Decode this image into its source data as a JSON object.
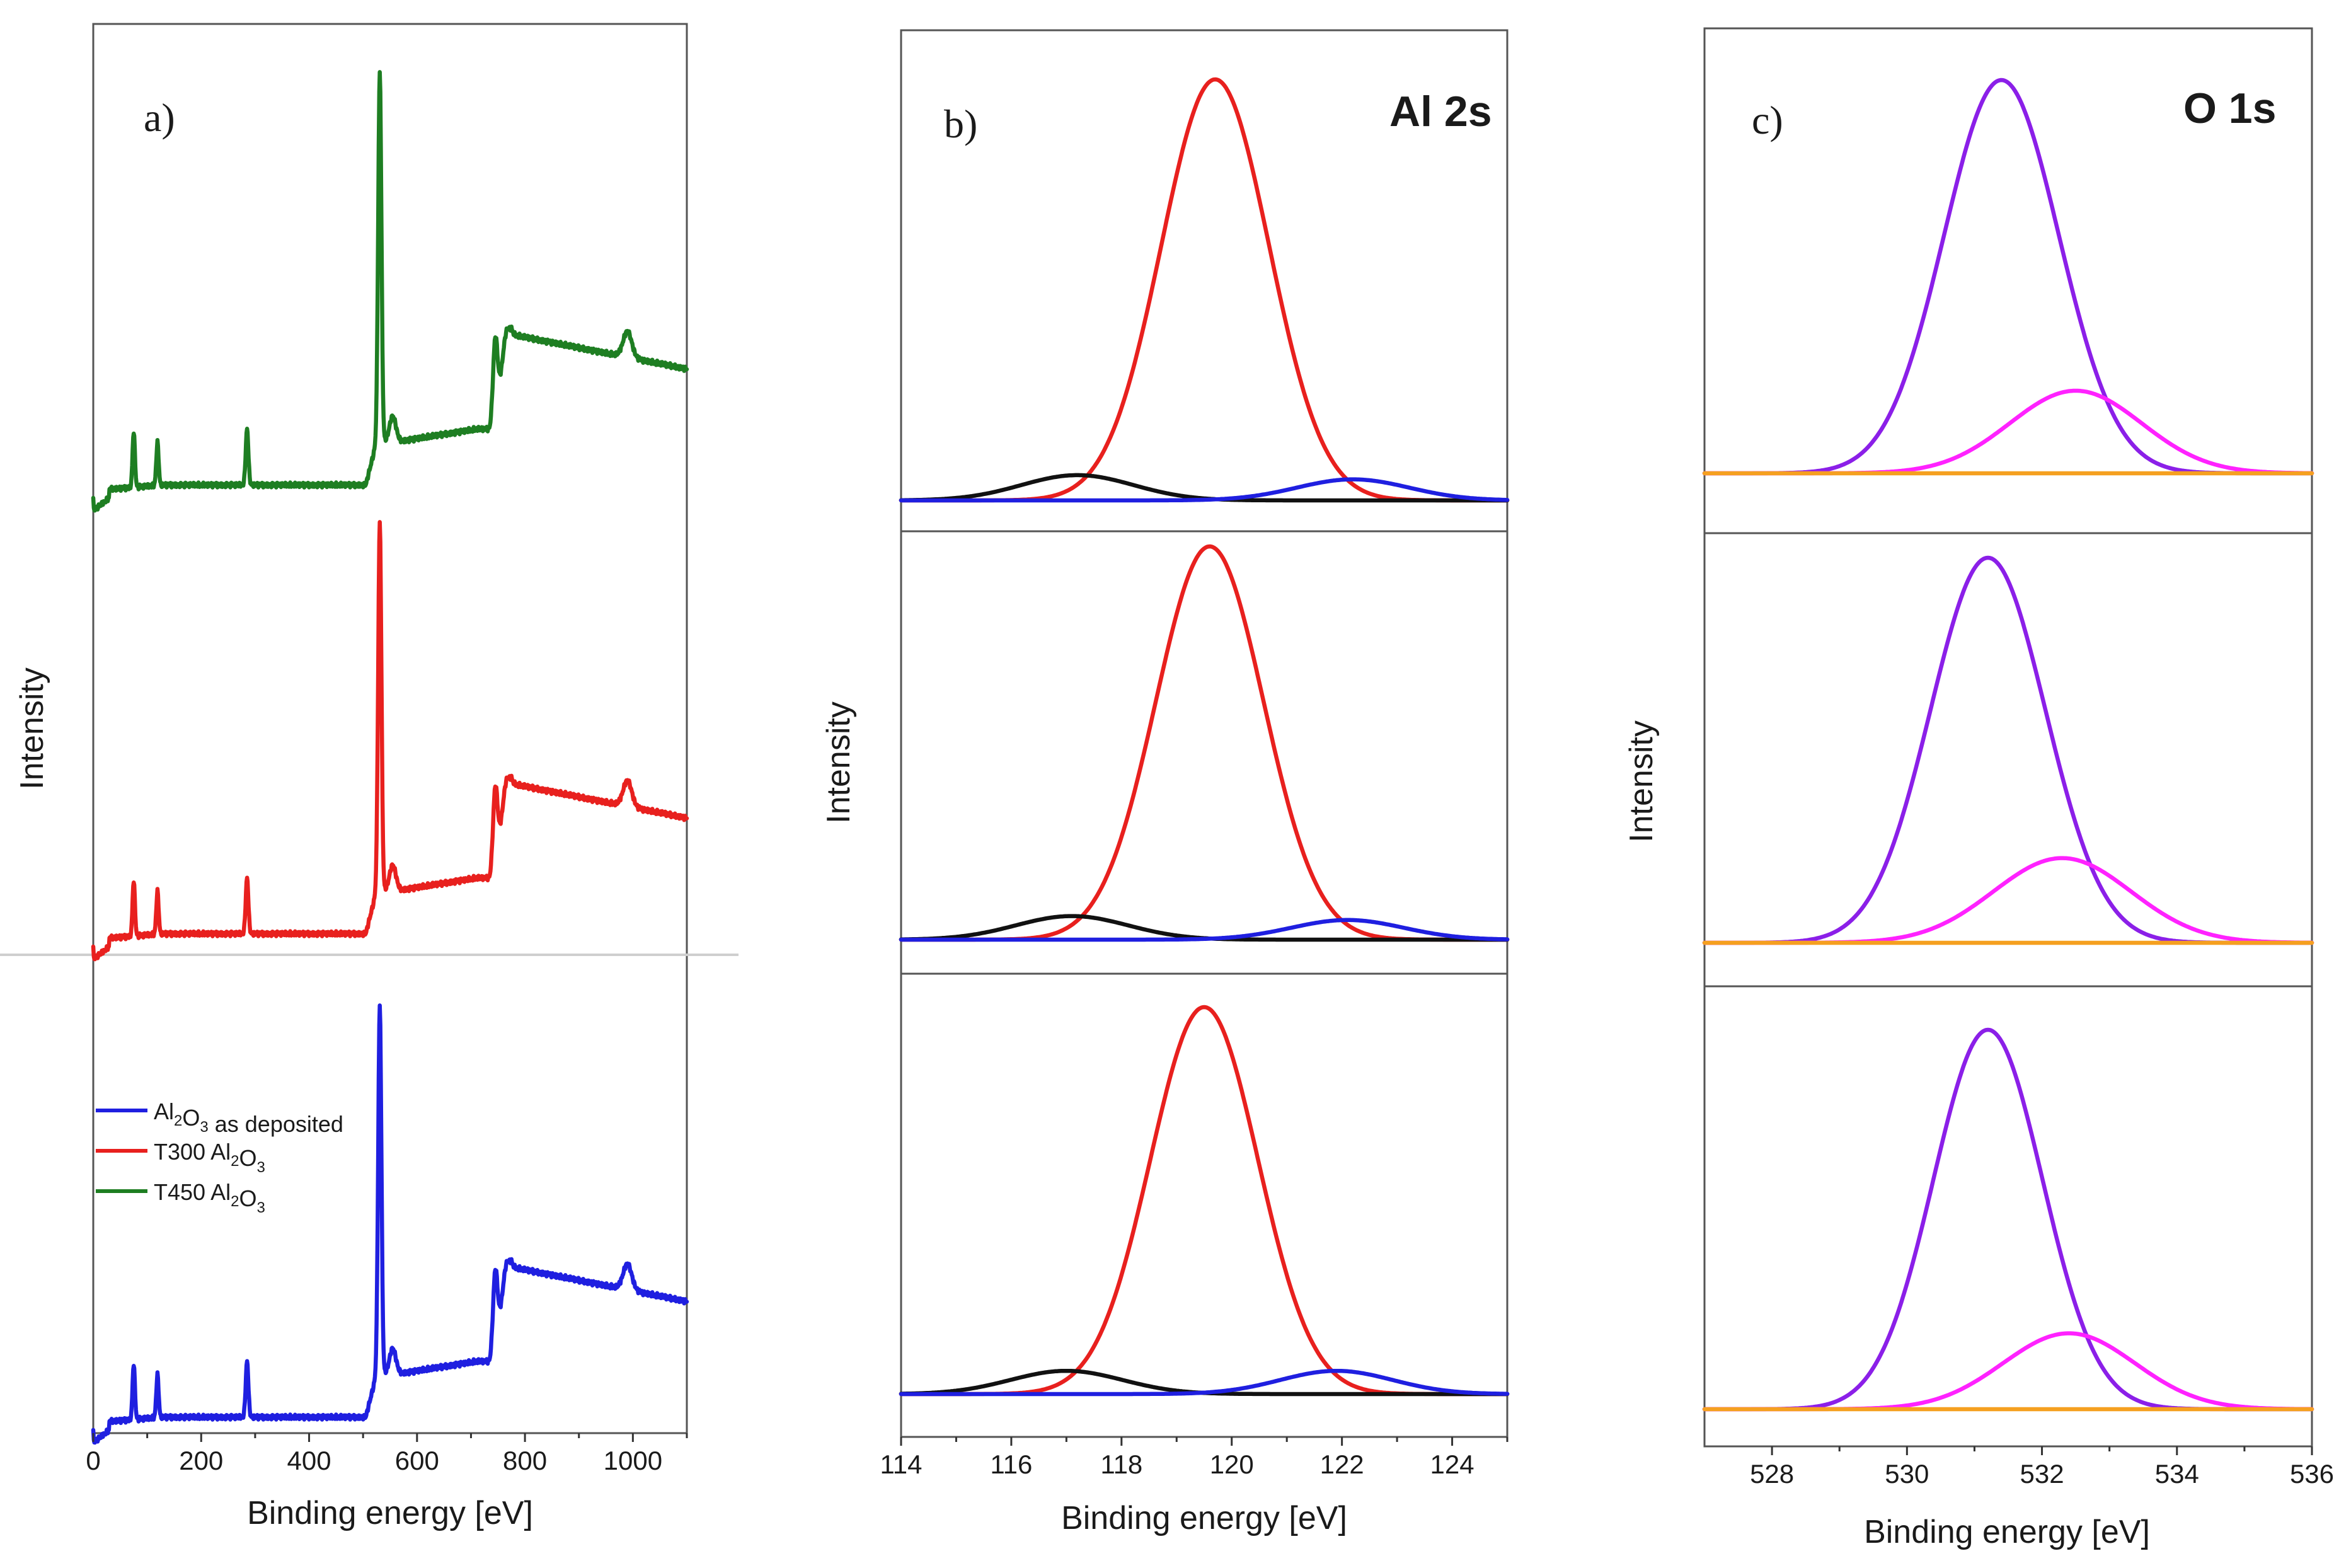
{
  "figure_description_labels": {
    "a": "a)",
    "b": "b)",
    "c": "c)"
  },
  "chart_data": [
    {
      "id": "a",
      "type": "line",
      "panel_label": "a)",
      "xlabel": "Binding energy [eV]",
      "ylabel": "Intensity",
      "xlim": [
        0,
        1100
      ],
      "xticks": [
        0,
        200,
        400,
        600,
        800,
        1000
      ],
      "xtick_labels": [
        "0",
        "200",
        "400",
        "600",
        "800",
        "1000"
      ],
      "y_axis_ticks": false,
      "legend": {
        "placement": "center-left",
        "entries": [
          {
            "parts": [
              {
                "t": "Al"
              },
              {
                "t": "2",
                "sub": true
              },
              {
                "t": "O"
              },
              {
                "t": "3",
                "sub": true
              },
              {
                "t": " as deposited"
              }
            ],
            "color": "#1f1fe0"
          },
          {
            "parts": [
              {
                "t": "T300 Al"
              },
              {
                "t": "2",
                "sub": true
              },
              {
                "t": "O"
              },
              {
                "t": "3",
                "sub": true
              }
            ],
            "color": "#e8201e"
          },
          {
            "parts": [
              {
                "t": "T450 Al"
              },
              {
                "t": "2",
                "sub": true
              },
              {
                "t": "O"
              },
              {
                "t": "3",
                "sub": true
              }
            ],
            "color": "#1e7e22"
          }
        ]
      },
      "series_order_top_to_bottom": [
        "T450 Al2O3",
        "T300 Al2O3",
        "Al2O3 as deposited"
      ],
      "peaks_eV": {
        "Na KLL (approx.)": 75,
        "Al 2s": 119,
        "C 1s": 285,
        "O 1s": 531,
        "O KLL": 745,
        "Na 1s / O KLL edge": 990
      },
      "series": [
        {
          "name": "T450 Al2O3",
          "color": "#1e7e22"
        },
        {
          "name": "T300 Al2O3",
          "color": "#e8201e"
        },
        {
          "name": "Al2O3 as deposited",
          "color": "#1f1fe0"
        }
      ]
    },
    {
      "id": "b",
      "type": "line",
      "panel_label": "b)",
      "title": "Al 2s",
      "xlabel": "Binding energy [eV]",
      "ylabel": "Intensity",
      "xlim": [
        114,
        125
      ],
      "xticks": [
        114,
        116,
        118,
        120,
        122,
        124
      ],
      "xtick_labels": [
        "114",
        "116",
        "118",
        "120",
        "122",
        "124"
      ],
      "y_axis_ticks": false,
      "stacked_subpanels": [
        {
          "position": "top",
          "components": [
            {
              "color": "#e8201e",
              "center_eV": 119.7,
              "fwhm_eV": 2.3,
              "rel_height": 1.0
            },
            {
              "color": "#111111",
              "center_eV": 117.2,
              "fwhm_eV": 2.4,
              "rel_height": 0.06
            },
            {
              "color": "#1f1fe0",
              "center_eV": 122.2,
              "fwhm_eV": 2.4,
              "rel_height": 0.05
            }
          ]
        },
        {
          "position": "middle",
          "components": [
            {
              "color": "#e8201e",
              "center_eV": 119.6,
              "fwhm_eV": 2.3,
              "rel_height": 1.0
            },
            {
              "color": "#111111",
              "center_eV": 117.1,
              "fwhm_eV": 2.4,
              "rel_height": 0.06
            },
            {
              "color": "#1f1fe0",
              "center_eV": 122.1,
              "fwhm_eV": 2.4,
              "rel_height": 0.05
            }
          ]
        },
        {
          "position": "bottom",
          "components": [
            {
              "color": "#e8201e",
              "center_eV": 119.5,
              "fwhm_eV": 2.3,
              "rel_height": 1.0
            },
            {
              "color": "#111111",
              "center_eV": 117.0,
              "fwhm_eV": 2.4,
              "rel_height": 0.06
            },
            {
              "color": "#1f1fe0",
              "center_eV": 121.9,
              "fwhm_eV": 2.4,
              "rel_height": 0.06
            }
          ]
        }
      ]
    },
    {
      "id": "c",
      "type": "line",
      "panel_label": "c)",
      "title": "O 1s",
      "xlabel": "Binding energy [eV]",
      "ylabel": "Intensity",
      "xlim": [
        527,
        536
      ],
      "xticks": [
        528,
        530,
        532,
        534,
        536
      ],
      "xtick_labels": [
        "528",
        "530",
        "532",
        "534",
        "536"
      ],
      "y_axis_ticks": false,
      "stacked_subpanels": [
        {
          "position": "top",
          "components": [
            {
              "color": "#8b1fe8",
              "center_eV": 531.4,
              "fwhm_eV": 2.0,
              "rel_height": 1.0
            },
            {
              "color": "#ff22ff",
              "center_eV": 532.5,
              "fwhm_eV": 2.3,
              "rel_height": 0.21
            },
            {
              "color": "#f5a020",
              "center_eV": 531.5,
              "fwhm_eV": 0,
              "rel_height": 0.0
            }
          ]
        },
        {
          "position": "middle",
          "components": [
            {
              "color": "#8b1fe8",
              "center_eV": 531.2,
              "fwhm_eV": 2.0,
              "rel_height": 1.0
            },
            {
              "color": "#ff22ff",
              "center_eV": 532.3,
              "fwhm_eV": 2.4,
              "rel_height": 0.22
            },
            {
              "color": "#f5a020",
              "center_eV": 531.5,
              "fwhm_eV": 0,
              "rel_height": 0.0
            }
          ]
        },
        {
          "position": "bottom",
          "components": [
            {
              "color": "#8b1fe8",
              "center_eV": 531.2,
              "fwhm_eV": 1.9,
              "rel_height": 1.0
            },
            {
              "color": "#ff22ff",
              "center_eV": 532.4,
              "fwhm_eV": 2.3,
              "rel_height": 0.2
            },
            {
              "color": "#f5a020",
              "center_eV": 531.5,
              "fwhm_eV": 0,
              "rel_height": 0.0
            }
          ]
        }
      ]
    }
  ]
}
